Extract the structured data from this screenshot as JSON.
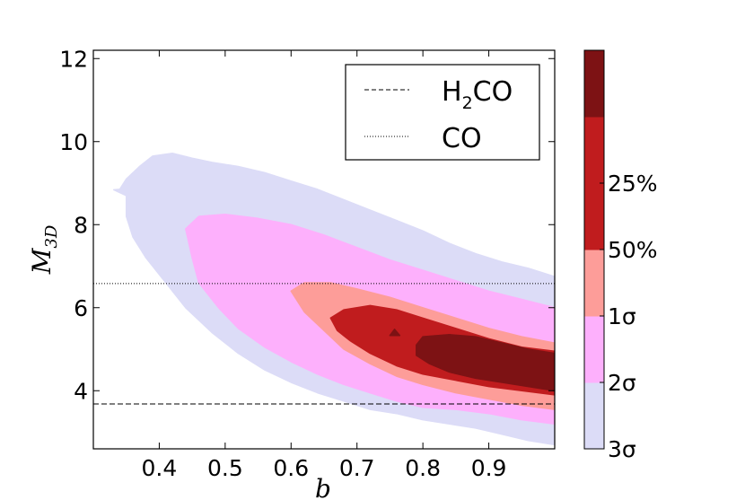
{
  "chart_data": {
    "type": "filled-contour",
    "title": "",
    "xlabel": "b",
    "ylabel": "M_3D",
    "xlim": [
      0.3,
      1.0
    ],
    "ylim": [
      2.6,
      12.2
    ],
    "xticks": [
      0.4,
      0.5,
      0.6,
      0.7,
      0.8,
      0.9
    ],
    "yticks": [
      4,
      6,
      8,
      10,
      12
    ],
    "xtick_labels": [
      "0.4",
      "0.5",
      "0.6",
      "0.7",
      "0.8",
      "0.9"
    ],
    "ytick_labels": [
      "4",
      "6",
      "8",
      "10",
      "12"
    ],
    "grid": false,
    "reference_lines": [
      {
        "name": "H2CO",
        "style": "dashed",
        "y": 3.68
      },
      {
        "name": "CO",
        "style": "dotted",
        "y": 6.58
      }
    ],
    "legend": {
      "placement": "top-right",
      "entries": [
        {
          "style": "dashed",
          "label_main": "H",
          "label_sub": "2",
          "label_rest": "CO"
        },
        {
          "style": "dotted",
          "label_main": "CO",
          "label_sub": "",
          "label_rest": ""
        }
      ]
    },
    "contour_levels": [
      {
        "name": "3σ",
        "color": "#dcdcf7",
        "polygon": [
          [
            0.331,
            8.84
          ],
          [
            0.34,
            8.85
          ],
          [
            0.35,
            9.1
          ],
          [
            0.37,
            9.4
          ],
          [
            0.39,
            9.65
          ],
          [
            0.42,
            9.72
          ],
          [
            0.45,
            9.6
          ],
          [
            0.48,
            9.5
          ],
          [
            0.52,
            9.4
          ],
          [
            0.56,
            9.25
          ],
          [
            0.6,
            9.05
          ],
          [
            0.64,
            8.85
          ],
          [
            0.68,
            8.6
          ],
          [
            0.72,
            8.35
          ],
          [
            0.76,
            8.1
          ],
          [
            0.8,
            7.85
          ],
          [
            0.84,
            7.55
          ],
          [
            0.88,
            7.3
          ],
          [
            0.92,
            7.1
          ],
          [
            0.96,
            6.95
          ],
          [
            1.0,
            6.75
          ],
          [
            1.0,
            2.7
          ],
          [
            0.96,
            2.8
          ],
          [
            0.92,
            2.95
          ],
          [
            0.88,
            3.1
          ],
          [
            0.84,
            3.2
          ],
          [
            0.8,
            3.3
          ],
          [
            0.76,
            3.45
          ],
          [
            0.72,
            3.55
          ],
          [
            0.68,
            3.75
          ],
          [
            0.64,
            3.95
          ],
          [
            0.6,
            4.2
          ],
          [
            0.56,
            4.5
          ],
          [
            0.52,
            4.9
          ],
          [
            0.48,
            5.4
          ],
          [
            0.44,
            6.0
          ],
          [
            0.41,
            6.6
          ],
          [
            0.38,
            7.2
          ],
          [
            0.36,
            7.7
          ],
          [
            0.35,
            8.2
          ],
          [
            0.35,
            8.7
          ]
        ]
      },
      {
        "name": "2σ",
        "color": "#fdb0fc",
        "polygon": [
          [
            0.44,
            7.9
          ],
          [
            0.46,
            8.2
          ],
          [
            0.5,
            8.25
          ],
          [
            0.55,
            8.15
          ],
          [
            0.6,
            8.0
          ],
          [
            0.65,
            7.75
          ],
          [
            0.7,
            7.45
          ],
          [
            0.75,
            7.15
          ],
          [
            0.8,
            6.9
          ],
          [
            0.85,
            6.65
          ],
          [
            0.9,
            6.4
          ],
          [
            0.95,
            6.2
          ],
          [
            1.0,
            6.0
          ],
          [
            1.0,
            3.2
          ],
          [
            0.95,
            3.3
          ],
          [
            0.9,
            3.45
          ],
          [
            0.85,
            3.55
          ],
          [
            0.8,
            3.6
          ],
          [
            0.76,
            3.75
          ],
          [
            0.72,
            3.95
          ],
          [
            0.68,
            4.15
          ],
          [
            0.64,
            4.4
          ],
          [
            0.6,
            4.7
          ],
          [
            0.56,
            5.05
          ],
          [
            0.52,
            5.5
          ],
          [
            0.49,
            6.0
          ],
          [
            0.46,
            6.6
          ],
          [
            0.45,
            7.2
          ]
        ]
      },
      {
        "name": "1σ",
        "color": "#fd9d99",
        "polygon": [
          [
            0.6,
            6.4
          ],
          [
            0.62,
            6.6
          ],
          [
            0.66,
            6.6
          ],
          [
            0.7,
            6.45
          ],
          [
            0.75,
            6.25
          ],
          [
            0.8,
            6.0
          ],
          [
            0.85,
            5.75
          ],
          [
            0.9,
            5.5
          ],
          [
            0.95,
            5.3
          ],
          [
            1.0,
            5.15
          ],
          [
            1.0,
            3.55
          ],
          [
            0.95,
            3.65
          ],
          [
            0.9,
            3.8
          ],
          [
            0.85,
            3.95
          ],
          [
            0.8,
            4.15
          ],
          [
            0.76,
            4.35
          ],
          [
            0.72,
            4.65
          ],
          [
            0.68,
            5.0
          ],
          [
            0.65,
            5.45
          ],
          [
            0.62,
            5.9
          ]
        ]
      },
      {
        "name": "50%",
        "color": "#c01c1e",
        "polygon": [
          [
            0.66,
            5.75
          ],
          [
            0.68,
            5.95
          ],
          [
            0.72,
            6.05
          ],
          [
            0.76,
            5.95
          ],
          [
            0.8,
            5.75
          ],
          [
            0.85,
            5.5
          ],
          [
            0.9,
            5.25
          ],
          [
            0.95,
            5.05
          ],
          [
            1.0,
            4.95
          ],
          [
            1.0,
            3.9
          ],
          [
            0.95,
            4.0
          ],
          [
            0.9,
            4.1
          ],
          [
            0.85,
            4.25
          ],
          [
            0.8,
            4.4
          ],
          [
            0.76,
            4.6
          ],
          [
            0.72,
            4.9
          ],
          [
            0.69,
            5.2
          ],
          [
            0.67,
            5.45
          ]
        ]
      },
      {
        "name": "25%",
        "color": "#7d1214",
        "polygon": [
          [
            0.79,
            5.1
          ],
          [
            0.8,
            5.3
          ],
          [
            0.84,
            5.35
          ],
          [
            0.88,
            5.3
          ],
          [
            0.92,
            5.15
          ],
          [
            0.96,
            5.0
          ],
          [
            1.0,
            4.9
          ],
          [
            1.0,
            4.0
          ],
          [
            0.96,
            4.1
          ],
          [
            0.92,
            4.2
          ],
          [
            0.88,
            4.3
          ],
          [
            0.84,
            4.45
          ],
          [
            0.81,
            4.65
          ],
          [
            0.79,
            4.85
          ]
        ]
      },
      {
        "name": "25%-speck",
        "color": "#7d1214",
        "polygon": [
          [
            0.75,
            5.33
          ],
          [
            0.757,
            5.48
          ],
          [
            0.765,
            5.33
          ]
        ]
      }
    ],
    "colorbar": {
      "levels": [
        {
          "label": "3σ",
          "color": "#dcdcf7"
        },
        {
          "label": "2σ",
          "color": "#fdb0fc"
        },
        {
          "label": "1σ",
          "color": "#fd9d99"
        },
        {
          "label": "50%",
          "color": "#c01c1e"
        },
        {
          "label": "25%",
          "color": "#c01c1e"
        },
        {
          "label": "",
          "color": "#7d1214"
        }
      ],
      "tick_labels": [
        "3σ",
        "2σ",
        "1σ",
        "50%",
        "25%"
      ]
    }
  }
}
